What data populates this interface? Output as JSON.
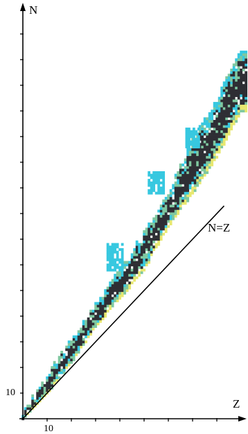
{
  "figure": {
    "y_axis_label": "N",
    "x_axis_label": "Z",
    "x_tick_label": "10",
    "y_tick_label": "10",
    "diagonal_label": "N=Z"
  },
  "chart_data": {
    "type": "heatmap",
    "xlabel": "Z",
    "ylabel": "N",
    "xlim": [
      0,
      93
    ],
    "ylim": [
      0,
      160
    ],
    "x_tick_labels": [
      "10"
    ],
    "y_tick_labels": [
      "10"
    ],
    "reference_line": {
      "label": "N=Z",
      "from": [
        0,
        0
      ],
      "to": [
        83,
        83
      ]
    },
    "band": {
      "description_colors": [
        "#2e2e34",
        "#37c8e0",
        "#e8e870",
        "#7fc8a0"
      ],
      "n_min_at_z": [
        [
          0,
          0
        ],
        [
          10,
          10
        ],
        [
          20,
          22
        ],
        [
          30,
          36
        ],
        [
          40,
          47
        ],
        [
          50,
          58
        ],
        [
          60,
          75
        ],
        [
          70,
          88
        ],
        [
          80,
          102
        ],
        [
          90,
          120
        ]
      ],
      "n_max_at_z": [
        [
          0,
          2
        ],
        [
          10,
          17
        ],
        [
          20,
          30
        ],
        [
          30,
          44
        ],
        [
          40,
          58
        ],
        [
          50,
          72
        ],
        [
          60,
          88
        ],
        [
          70,
          108
        ],
        [
          80,
          124
        ],
        [
          90,
          144
        ]
      ]
    }
  },
  "colors": {
    "axis": "#000000",
    "nuclide_dark": "#2e2e34",
    "nuclide_cyan": "#37c8e0",
    "nuclide_yellow": "#e8e870",
    "nuclide_green": "#7fc8a0"
  }
}
